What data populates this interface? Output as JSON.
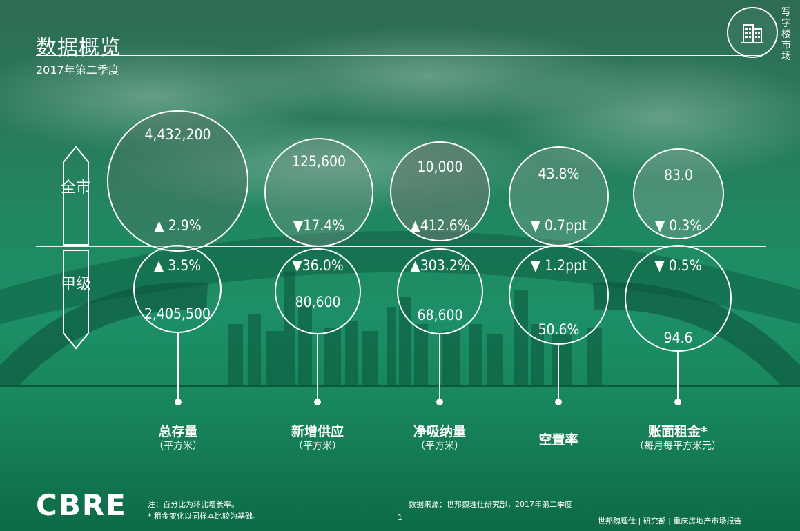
{
  "header": {
    "title": "数据概览",
    "subtitle": "2017年第二季度",
    "vertical_label": "写字楼市场",
    "badge_icon": "building-icon"
  },
  "row_labels": {
    "city": "全市",
    "grade_a": "甲级"
  },
  "metrics": [
    {
      "label": "总存量",
      "unit": "（平方米）",
      "city_value": "4,432,200",
      "city_change": "▲ 2.9%",
      "grade_a_change": "▲ 3.5%",
      "grade_a_value": "2,405,500"
    },
    {
      "label": "新增供应",
      "unit": "（平方米）",
      "city_value": "125,600",
      "city_change": "▼17.4%",
      "grade_a_change": "▼36.0%",
      "grade_a_value": "80,600"
    },
    {
      "label": "净吸纳量",
      "unit": "（平方米）",
      "city_value": "10,000",
      "city_change": "▲412.6%",
      "grade_a_change": "▲303.2%",
      "grade_a_value": "68,600"
    },
    {
      "label": "空置率",
      "unit": "",
      "city_value": "43.8%",
      "city_change": "▼ 0.7ppt",
      "grade_a_change": "▼ 1.2ppt",
      "grade_a_value": "50.6%"
    },
    {
      "label": "账面租金*",
      "unit": "（每月每平方米元）",
      "city_value": "83.0",
      "city_change": "▼ 0.3%",
      "grade_a_change": "▼ 0.5%",
      "grade_a_value": "94.6"
    }
  ],
  "footer": {
    "logo": "CBRE",
    "note_1": "注：百分比为环比增长率。",
    "note_2": "*  租金变化以同样本比较为基础。",
    "source": "数据来源：世邦魏理仕研究部，2017年第二季度",
    "page_number": "1",
    "report_line": "世邦魏理仕 | 研究部 | 重庆房地产市场报告"
  },
  "colors": {
    "primary_green": "#1d8f66",
    "dark_green": "#0f6f4c",
    "white": "#ffffff"
  }
}
